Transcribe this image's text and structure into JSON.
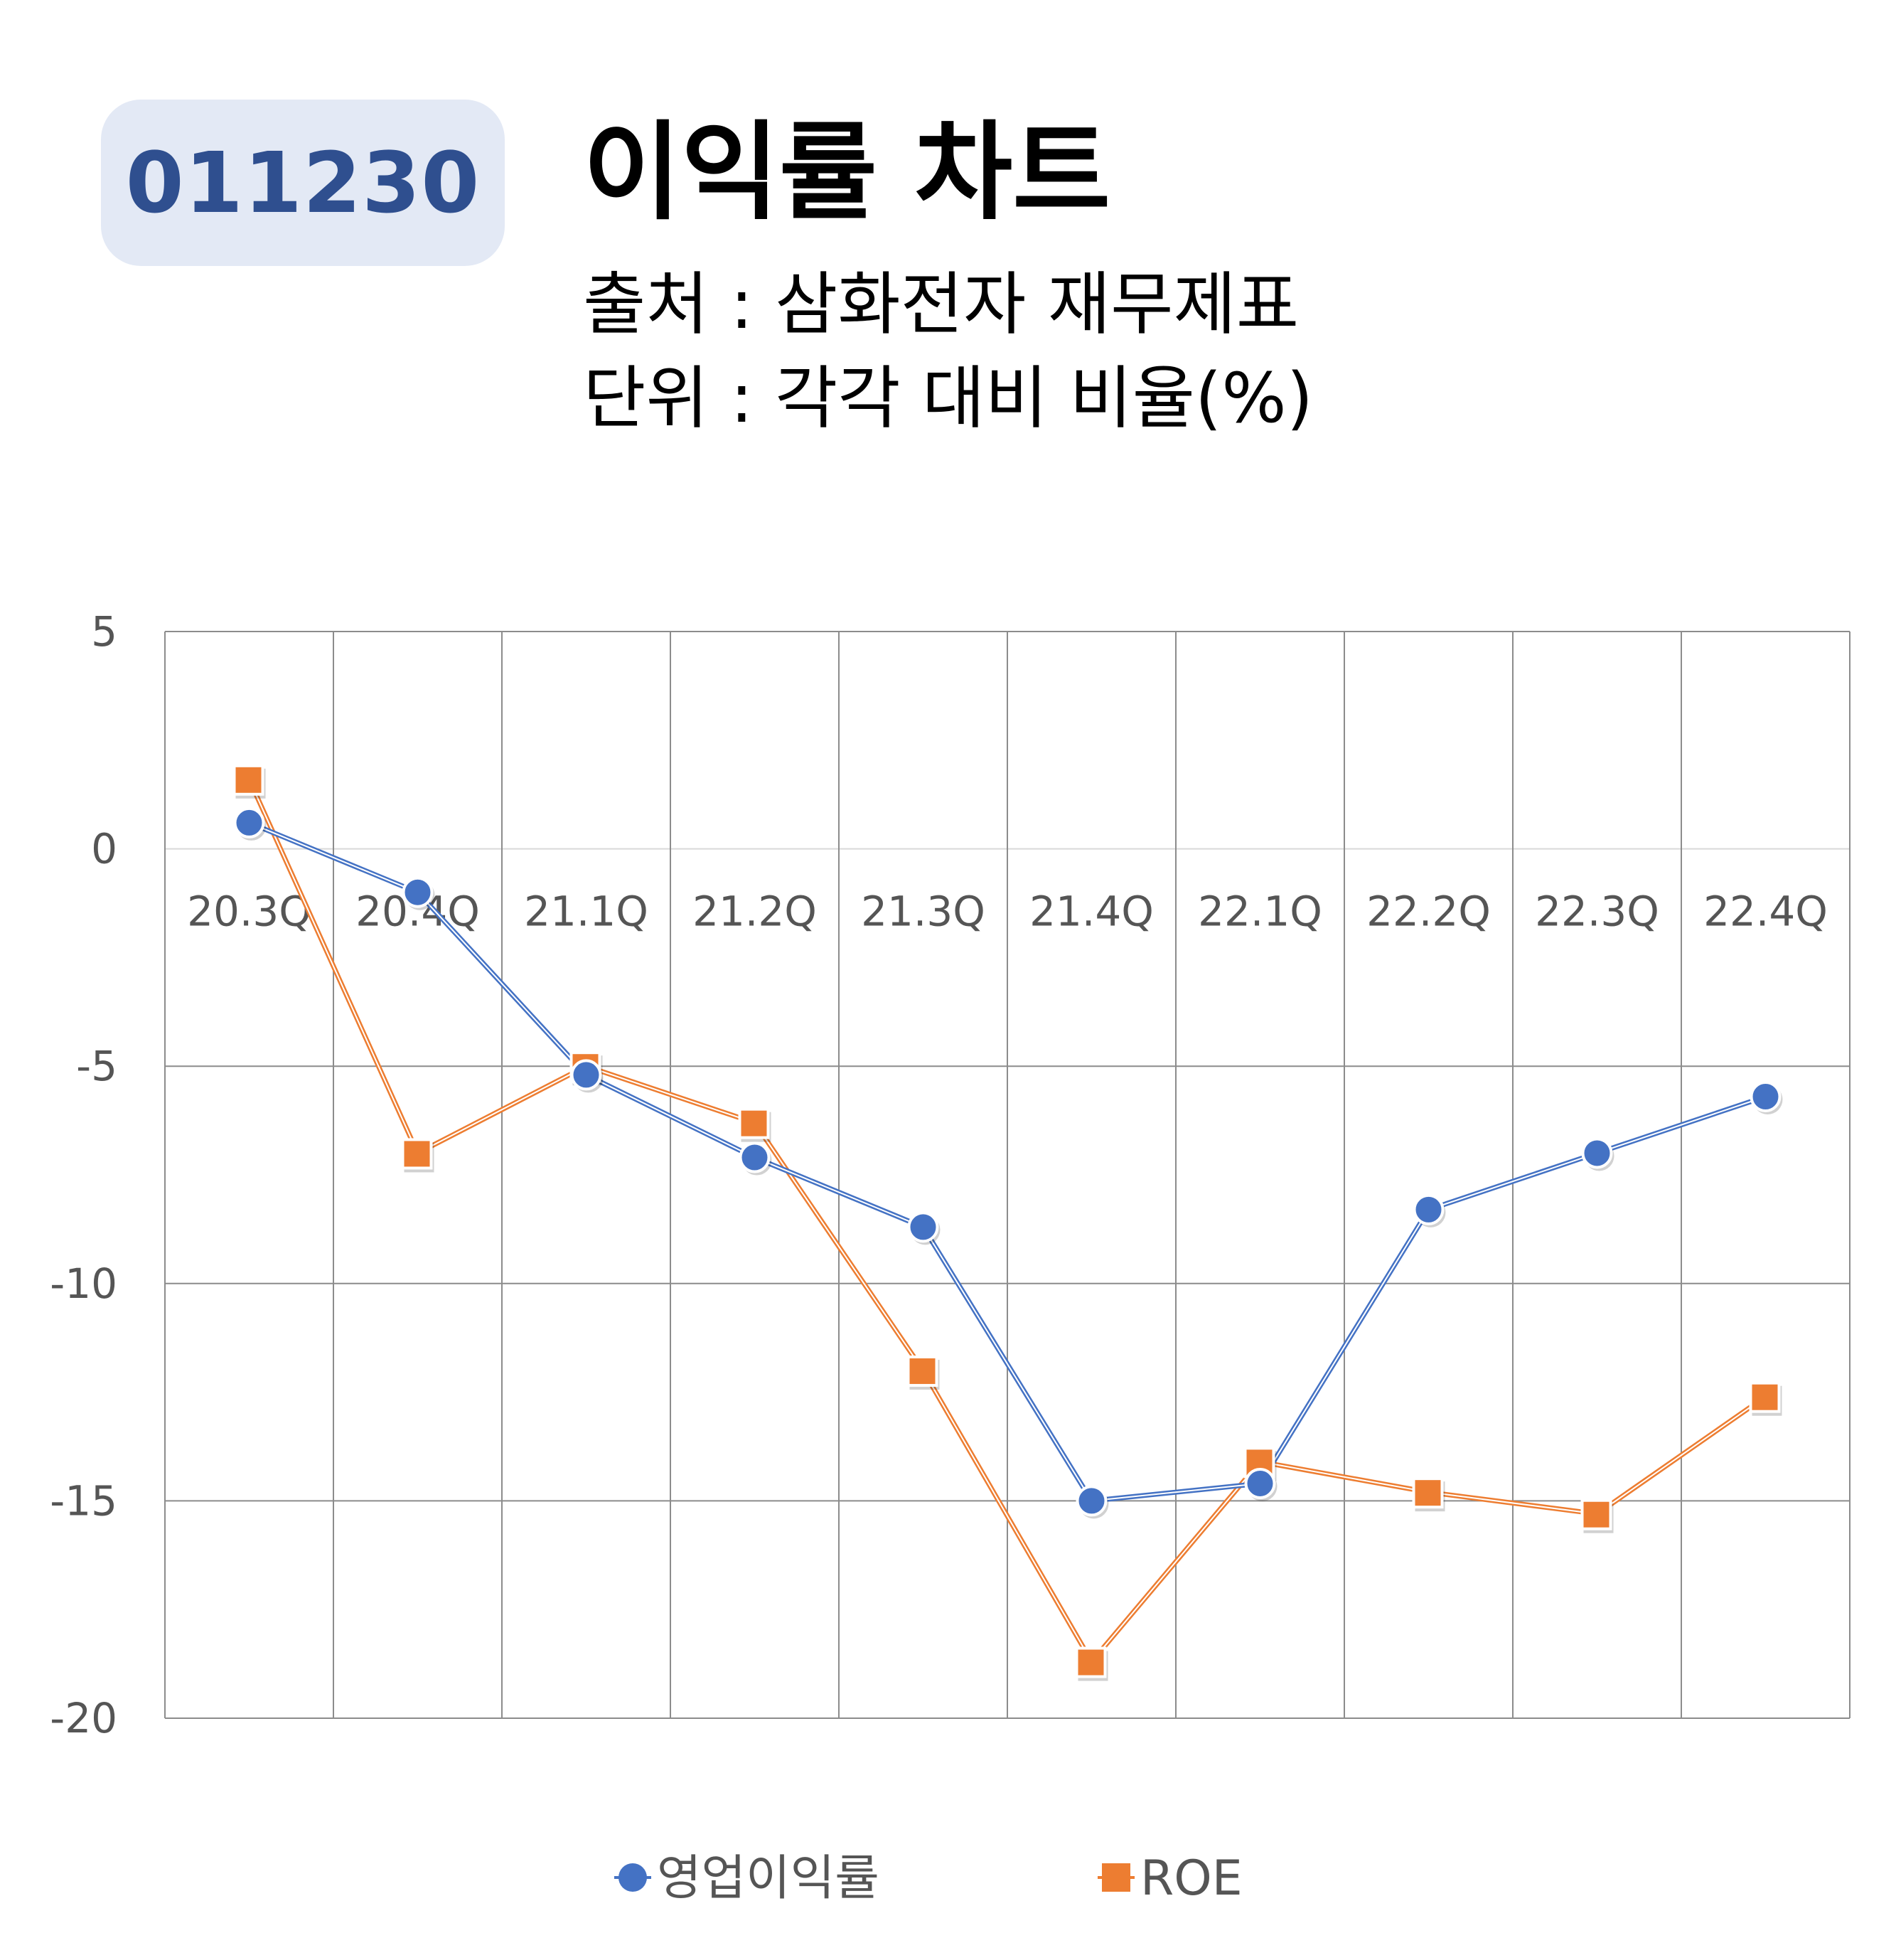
{
  "header": {
    "code": "011230",
    "title": "이익률 차트",
    "source": "출처 : 삼화전자 재무제표",
    "unit": "단위 : 각각 대비 비율(%)"
  },
  "colors": {
    "operating": "#4472c4",
    "roe": "#ed7d31",
    "grid": "#8c8c8c",
    "badge_bg": "#e3e9f5",
    "badge_text": "#2f4f8f"
  },
  "chart_data": {
    "type": "line",
    "categories": [
      "20.3Q",
      "20.4Q",
      "21.1Q",
      "21.2Q",
      "21.3Q",
      "21.4Q",
      "22.1Q",
      "22.2Q",
      "22.3Q",
      "22.4Q"
    ],
    "series": [
      {
        "name": "영업이익률",
        "marker": "circle",
        "values": [
          0.6,
          -1.0,
          -5.2,
          -7.1,
          -8.7,
          -15.0,
          -14.6,
          -8.3,
          -7.0,
          -5.7
        ]
      },
      {
        "name": "ROE",
        "marker": "square",
        "values": [
          1.6,
          -7.0,
          -5.0,
          -6.3,
          -12.0,
          -18.7,
          -14.1,
          -14.8,
          -15.3,
          -12.6
        ]
      }
    ],
    "ylim": [
      -20,
      5
    ],
    "yticks": [
      5,
      0,
      -5,
      -10,
      -15,
      -20
    ],
    "grid": true,
    "legend_position": "bottom"
  }
}
